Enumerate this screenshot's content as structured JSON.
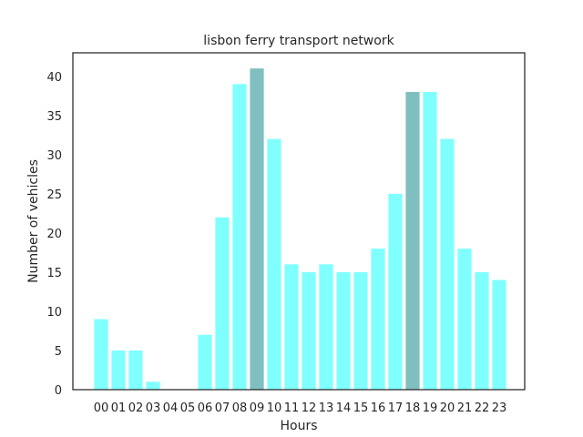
{
  "chart_data": {
    "type": "bar",
    "title": "lisbon ferry transport network",
    "xlabel": "Hours",
    "ylabel": "Number of vehicles",
    "categories": [
      "00",
      "01",
      "02",
      "03",
      "04",
      "05",
      "06",
      "07",
      "08",
      "09",
      "10",
      "11",
      "12",
      "13",
      "14",
      "15",
      "16",
      "17",
      "18",
      "19",
      "20",
      "21",
      "22",
      "23"
    ],
    "values": [
      9,
      5,
      5,
      1,
      0,
      0,
      7,
      22,
      39,
      41,
      32,
      16,
      15,
      16,
      15,
      15,
      18,
      25,
      38,
      38,
      32,
      18,
      15,
      14
    ],
    "highlighted": [
      "09",
      "18"
    ],
    "ylim": [
      0,
      43
    ],
    "yticks": [
      0,
      5,
      10,
      15,
      20,
      25,
      30,
      35,
      40
    ],
    "grid": false,
    "colors": {
      "bar": "#80ffff",
      "highlight": "#80bfbf",
      "axis": "#262626"
    }
  }
}
